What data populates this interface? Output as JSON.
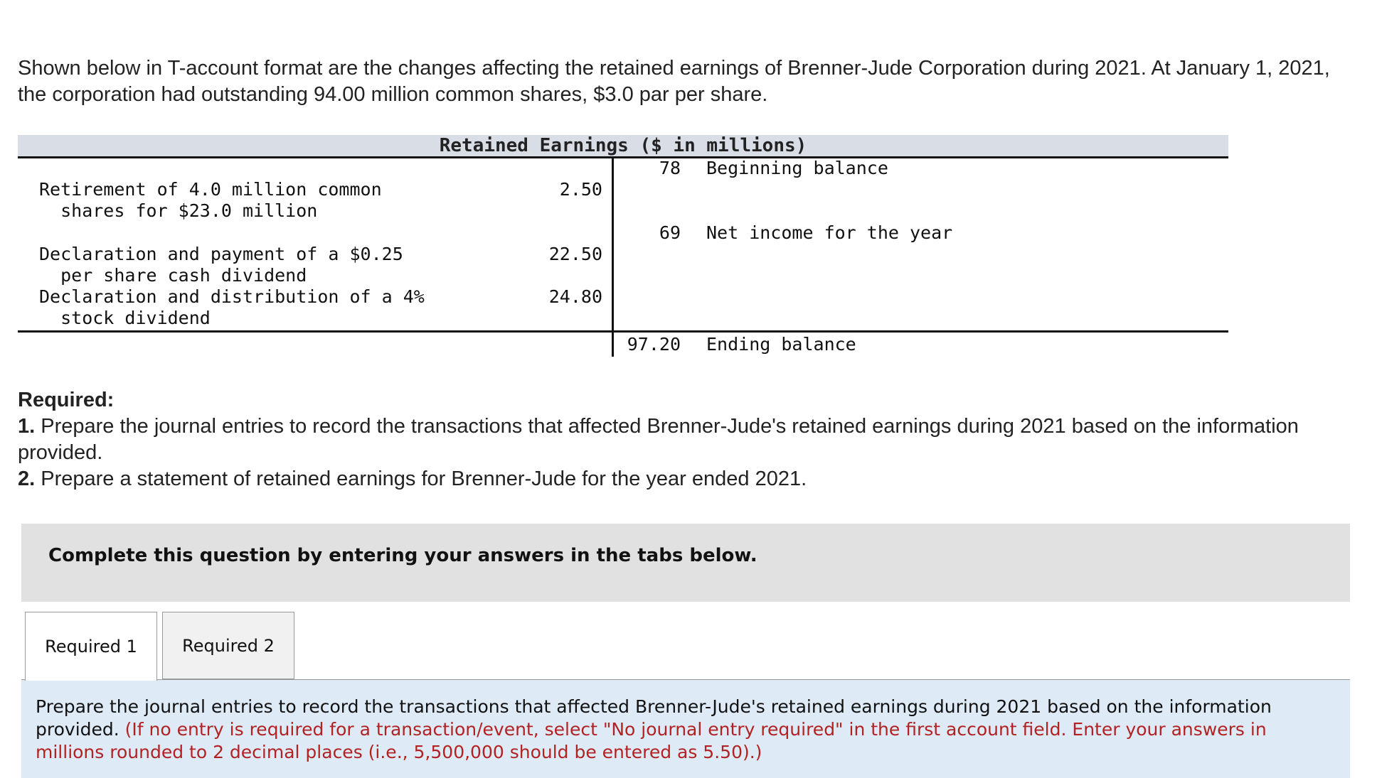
{
  "intro": "Shown below in T-account format are the changes affecting the retained earnings of Brenner-Jude Corporation during 2021. At January 1, 2021, the corporation had outstanding 94.00 million common shares, $3.0 par per share.",
  "taccount": {
    "title": "Retained Earnings ($ in millions)",
    "beginning": {
      "amount": "78",
      "label": "Beginning balance"
    },
    "debits": [
      {
        "line1": "Retirement of 4.0 million common",
        "line2": "  shares for $23.0 million",
        "amount": "2.50"
      },
      {
        "line1": "Declaration and payment of a $0.25",
        "line2": "  per share cash dividend",
        "amount": "22.50"
      },
      {
        "line1": "Declaration and distribution of a 4%",
        "line2": "  stock dividend",
        "amount": "24.80"
      }
    ],
    "credits": [
      {
        "amount": "69",
        "label": "Net income for the year"
      }
    ],
    "ending": {
      "amount": "97.20",
      "label": "Ending balance"
    }
  },
  "required": {
    "heading": "Required:",
    "item1_num": "1.",
    "item1_text": " Prepare the journal entries to record the transactions that affected Brenner-Jude's retained earnings during 2021 based on the information provided.",
    "item2_num": "2.",
    "item2_text": " Prepare a statement of retained earnings for Brenner-Jude for the year ended 2021."
  },
  "banner": "Complete this question by entering your answers in the tabs below.",
  "tabs": [
    {
      "label": "Required 1",
      "active": true
    },
    {
      "label": "Required 2",
      "active": false
    }
  ],
  "instructions": {
    "text": "Prepare the journal entries to record the transactions that affected Brenner-Jude's retained earnings during 2021 based on the information provided. ",
    "note": "(If no entry is required for a transaction/event, select \"No journal entry required\" in the first account field. Enter your answers in millions rounded to 2 decimal places (i.e., 5,500,000 should be entered as 5.50).)"
  }
}
